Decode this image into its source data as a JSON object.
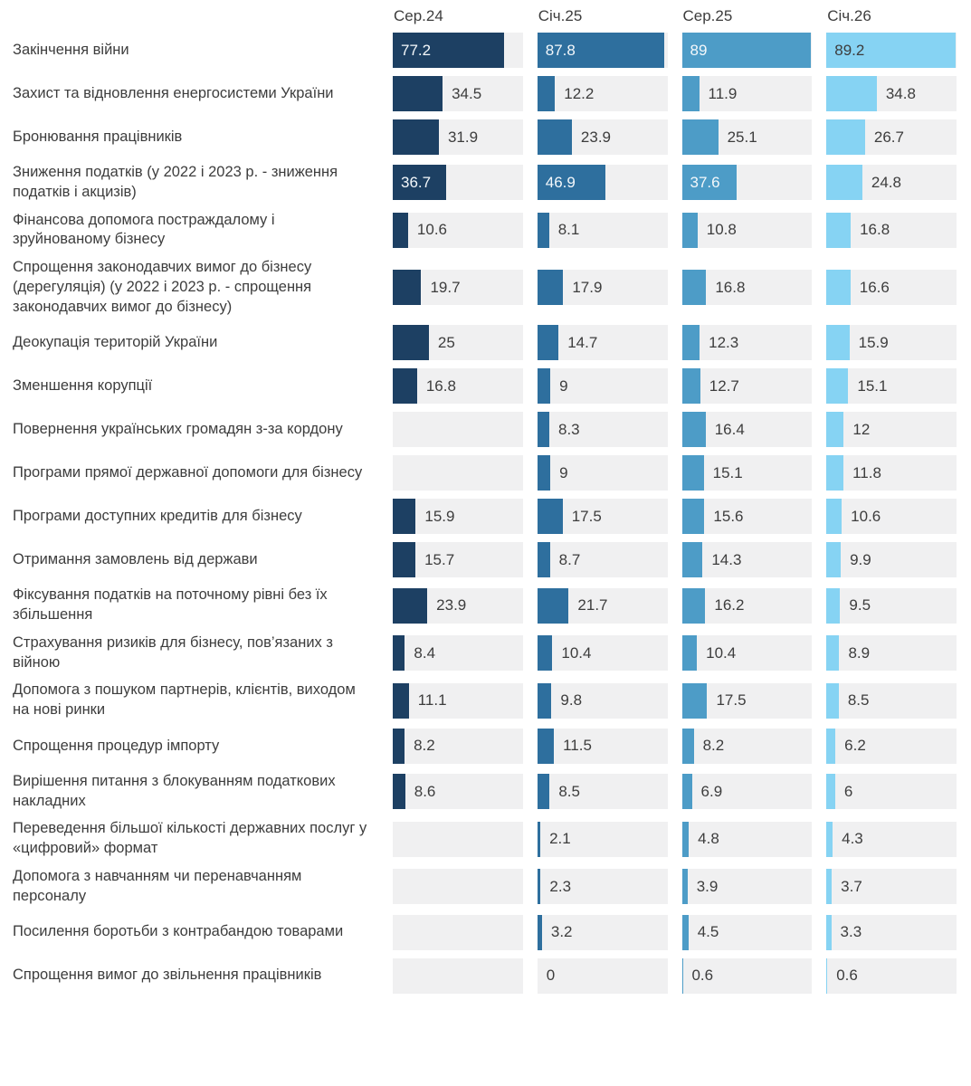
{
  "chart_data": {
    "type": "bar",
    "orientation": "horizontal",
    "title": "",
    "xlim": [
      0,
      90
    ],
    "grid": false,
    "legend_position": "top-as-column-headers",
    "columns": [
      "Сер.24",
      "Січ.25",
      "Сер.25",
      "Січ.26"
    ],
    "column_colors": [
      "#1d4063",
      "#2e6f9e",
      "#4d9cc7",
      "#86d3f3"
    ],
    "track_color": "#f0f0f1",
    "label_color": "#3d3d3d",
    "inside_label_colors": [
      "#f4f8fb",
      "#f4f8fb",
      "#f4f8fb",
      "#3d3d3d"
    ],
    "rows": [
      {
        "label": "Закінчення війни",
        "values": [
          77.2,
          87.8,
          89,
          89.2
        ]
      },
      {
        "label": "Захист та відновлення енергосистеми України",
        "values": [
          34.5,
          12.2,
          11.9,
          34.8
        ]
      },
      {
        "label": "Бронювання працівників",
        "values": [
          31.9,
          23.9,
          25.1,
          26.7
        ]
      },
      {
        "label": "Зниження податків (у 2022 і 2023 р. - зниження податків і акцизів)",
        "values": [
          36.7,
          46.9,
          37.6,
          24.8
        ]
      },
      {
        "label": "Фінансова допомога постраждалому і зруйнованому бізнесу",
        "values": [
          10.6,
          8.1,
          10.8,
          16.8
        ]
      },
      {
        "label": "Спрощення законодавчих вимог до бізнесу (дерегуляція) (у 2022 і 2023 р. - спрощення законодавчих вимог до бізнесу)",
        "values": [
          19.7,
          17.9,
          16.8,
          16.6
        ]
      },
      {
        "label": "Деокупація територій України",
        "values": [
          25,
          14.7,
          12.3,
          15.9
        ]
      },
      {
        "label": "Зменшення корупції",
        "values": [
          16.8,
          9,
          12.7,
          15.1
        ]
      },
      {
        "label": "Повернення українських громадян з-за кордону",
        "values": [
          null,
          8.3,
          16.4,
          12
        ]
      },
      {
        "label": "Програми прямої державної допомоги для бізнесу",
        "values": [
          null,
          9,
          15.1,
          11.8
        ]
      },
      {
        "label": "Програми доступних кредитів для бізнесу",
        "values": [
          15.9,
          17.5,
          15.6,
          10.6
        ]
      },
      {
        "label": "Отримання замовлень від держави",
        "values": [
          15.7,
          8.7,
          14.3,
          9.9
        ]
      },
      {
        "label": "Фіксування податків на поточному рівні без їх збільшення",
        "values": [
          23.9,
          21.7,
          16.2,
          9.5
        ]
      },
      {
        "label": "Страхування ризиків для бізнесу, пов’язаних з війною",
        "values": [
          8.4,
          10.4,
          10.4,
          8.9
        ]
      },
      {
        "label": "Допомога з пошуком партнерів, клієнтів, виходом на нові ринки",
        "values": [
          11.1,
          9.8,
          17.5,
          8.5
        ]
      },
      {
        "label": "Спрощення процедур імпорту",
        "values": [
          8.2,
          11.5,
          8.2,
          6.2
        ]
      },
      {
        "label": "Вирішення питання з блокуванням податкових накладних",
        "values": [
          8.6,
          8.5,
          6.9,
          6
        ]
      },
      {
        "label": "Переведення більшої кількості державних послуг у «цифровий» формат",
        "values": [
          null,
          2.1,
          4.8,
          4.3
        ]
      },
      {
        "label": "Допомога з навчанням чи перенавчанням персоналу",
        "values": [
          null,
          2.3,
          3.9,
          3.7
        ]
      },
      {
        "label": "Посилення боротьби з контрабандою товарами",
        "values": [
          null,
          3.2,
          4.5,
          3.3
        ]
      },
      {
        "label": "Спрощення вимог до звільнення працівників",
        "values": [
          null,
          0,
          0.6,
          0.6
        ]
      }
    ],
    "inside_label_threshold": 36
  }
}
